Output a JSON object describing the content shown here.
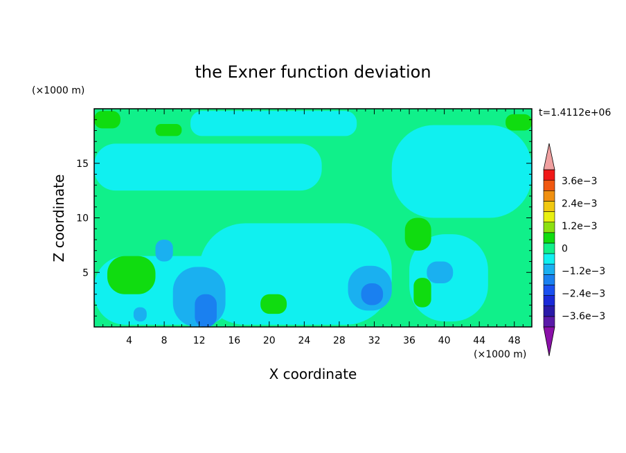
{
  "chart_data": {
    "type": "heatmap",
    "title": "the Exner function deviation",
    "xlabel": "X coordinate",
    "ylabel": "Z coordinate",
    "x_unit": "(×1000 m)",
    "y_unit": "(×1000 m)",
    "time_label": "t=1.4112e+06",
    "xlim": [
      0,
      50
    ],
    "ylim": [
      0,
      20
    ],
    "x_ticks": [
      4,
      8,
      12,
      16,
      20,
      24,
      28,
      32,
      36,
      40,
      44,
      48
    ],
    "y_ticks": [
      5,
      10,
      15
    ],
    "colorbar": {
      "levels": [
        -0.0042,
        -0.0036,
        -0.003,
        -0.0024,
        -0.0018,
        -0.0012,
        -0.0006,
        0,
        0.0006,
        0.0012,
        0.0018,
        0.0024,
        0.003,
        0.0036,
        0.0042
      ],
      "colors": [
        "#5a1aa8",
        "#2a1aa8",
        "#1a2ad8",
        "#1a50f0",
        "#1a80f0",
        "#1ab0f0",
        "#10f0f0",
        "#10f08a",
        "#10dc10",
        "#8ce010",
        "#e8f010",
        "#f0c810",
        "#f09010",
        "#f05810",
        "#f01818"
      ],
      "under_color": "#8a10a8",
      "over_color": "#f0a0a0",
      "tick_labels": [
        "3.6e−3",
        "2.4e−3",
        "1.2e−3",
        "0",
        "−1.2e−3",
        "−2.4e−3",
        "−3.6e−3"
      ],
      "tick_values": [
        0.0036,
        0.0024,
        0.0012,
        0,
        -0.0012,
        -0.0024,
        -0.0036
      ]
    },
    "field": {
      "background_value": 0.0003,
      "regions": [
        {
          "value": -0.0003,
          "x": [
            0,
            16
          ],
          "z": [
            0.2,
            6.5
          ]
        },
        {
          "value": -0.0003,
          "x": [
            12,
            34
          ],
          "z": [
            0.2,
            9.5
          ]
        },
        {
          "value": -0.0003,
          "x": [
            36,
            45
          ],
          "z": [
            0.5,
            8.5
          ]
        },
        {
          "value": -0.0003,
          "x": [
            0,
            26
          ],
          "z": [
            12.5,
            16.8
          ]
        },
        {
          "value": -0.0003,
          "x": [
            11,
            30
          ],
          "z": [
            17.5,
            19.8
          ]
        },
        {
          "value": -0.0003,
          "x": [
            34,
            50
          ],
          "z": [
            10,
            18.5
          ]
        },
        {
          "value": -0.0009,
          "x": [
            9,
            15
          ],
          "z": [
            0,
            5.5
          ]
        },
        {
          "value": -0.0009,
          "x": [
            29,
            34
          ],
          "z": [
            1.5,
            5.6
          ]
        },
        {
          "value": -0.0009,
          "x": [
            38,
            41
          ],
          "z": [
            4,
            6
          ]
        },
        {
          "value": -0.0009,
          "x": [
            7,
            9
          ],
          "z": [
            6,
            8
          ]
        },
        {
          "value": -0.0009,
          "x": [
            4.5,
            6
          ],
          "z": [
            0.5,
            1.8
          ]
        },
        {
          "value": -0.0015,
          "x": [
            11.5,
            14
          ],
          "z": [
            0,
            3
          ]
        },
        {
          "value": -0.0015,
          "x": [
            30.5,
            33
          ],
          "z": [
            2,
            4
          ]
        },
        {
          "value": 0.0009,
          "x": [
            1.5,
            7
          ],
          "z": [
            3,
            6.5
          ]
        },
        {
          "value": 0.0009,
          "x": [
            35.5,
            38.5
          ],
          "z": [
            7,
            10
          ]
        },
        {
          "value": 0.0009,
          "x": [
            36.5,
            38.5
          ],
          "z": [
            1.8,
            4.5
          ]
        },
        {
          "value": 0.0009,
          "x": [
            19,
            22
          ],
          "z": [
            1.2,
            3
          ]
        },
        {
          "value": 0.0009,
          "x": [
            0,
            3
          ],
          "z": [
            18.2,
            19.8
          ]
        },
        {
          "value": 0.0009,
          "x": [
            47,
            50
          ],
          "z": [
            18,
            19.5
          ]
        },
        {
          "value": 0.0009,
          "x": [
            7,
            10
          ],
          "z": [
            17.5,
            18.6
          ]
        }
      ]
    }
  }
}
